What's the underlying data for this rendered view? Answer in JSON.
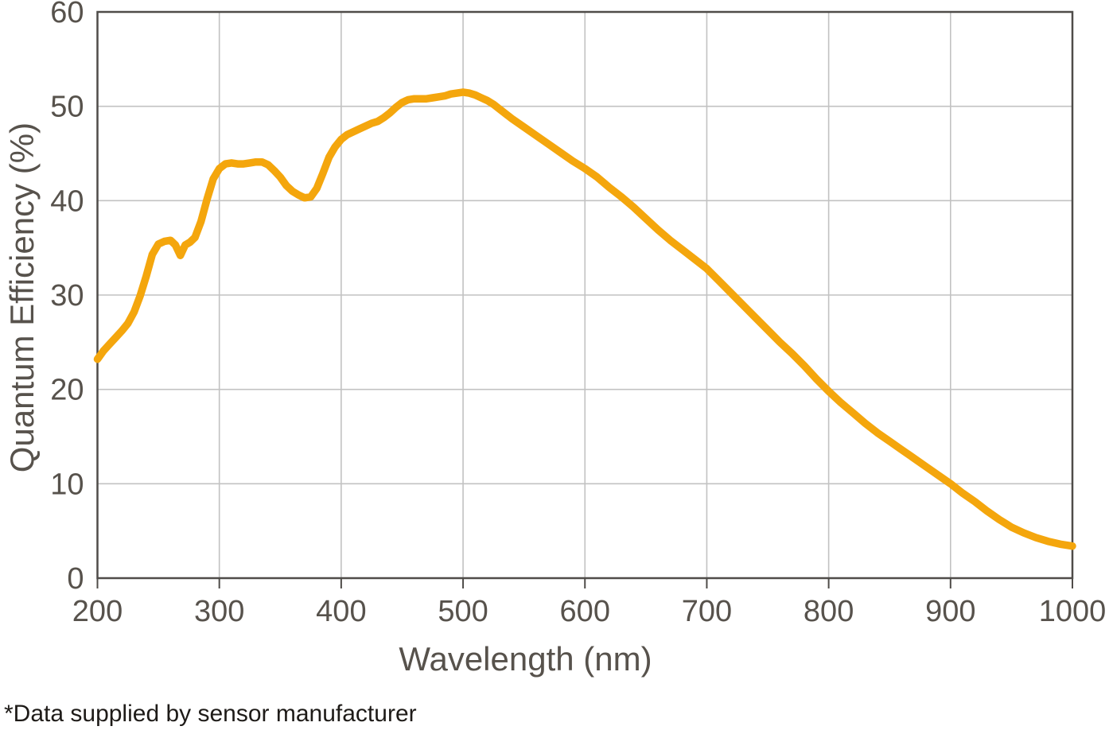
{
  "chart_data": {
    "type": "line",
    "title": "",
    "xlabel": "Wavelength (nm)",
    "ylabel": "Quantum Efficiency (%)",
    "xlim": [
      200,
      1000
    ],
    "ylim": [
      0,
      60
    ],
    "x_ticks": [
      200,
      300,
      400,
      500,
      600,
      700,
      800,
      900,
      1000
    ],
    "y_ticks": [
      0,
      10,
      20,
      30,
      40,
      50,
      60
    ],
    "grid": true,
    "legend": "none",
    "series": [
      {
        "name": "quantum-efficiency-curve",
        "color": "#F4A60D",
        "x": [
          200,
          205,
          210,
          215,
          220,
          225,
          230,
          235,
          240,
          245,
          250,
          255,
          260,
          264,
          268,
          272,
          276,
          280,
          285,
          290,
          295,
          300,
          305,
          310,
          315,
          320,
          325,
          330,
          335,
          340,
          345,
          350,
          355,
          360,
          365,
          370,
          375,
          380,
          385,
          390,
          395,
          400,
          405,
          410,
          415,
          420,
          425,
          430,
          435,
          440,
          445,
          450,
          455,
          460,
          465,
          470,
          475,
          480,
          485,
          490,
          495,
          500,
          505,
          510,
          515,
          520,
          525,
          530,
          540,
          550,
          560,
          570,
          580,
          590,
          600,
          610,
          620,
          630,
          640,
          650,
          660,
          670,
          680,
          690,
          700,
          710,
          720,
          730,
          740,
          750,
          760,
          770,
          780,
          790,
          800,
          810,
          820,
          830,
          840,
          850,
          860,
          870,
          880,
          890,
          900,
          910,
          920,
          930,
          940,
          950,
          960,
          970,
          980,
          990,
          1000
        ],
        "y": [
          23.2,
          24.1,
          24.8,
          25.5,
          26.2,
          27.0,
          28.2,
          29.9,
          32.0,
          34.3,
          35.4,
          35.7,
          35.8,
          35.3,
          34.2,
          35.3,
          35.6,
          36.1,
          37.8,
          40.2,
          42.3,
          43.4,
          43.9,
          44.0,
          43.9,
          43.9,
          44.0,
          44.1,
          44.1,
          43.8,
          43.2,
          42.5,
          41.6,
          41.0,
          40.6,
          40.3,
          40.4,
          41.3,
          42.9,
          44.6,
          45.7,
          46.5,
          47.0,
          47.3,
          47.6,
          47.9,
          48.2,
          48.4,
          48.8,
          49.3,
          49.9,
          50.4,
          50.7,
          50.8,
          50.8,
          50.8,
          50.9,
          51.0,
          51.1,
          51.3,
          51.4,
          51.5,
          51.4,
          51.2,
          50.9,
          50.6,
          50.2,
          49.7,
          48.7,
          47.8,
          46.9,
          46.0,
          45.1,
          44.2,
          43.4,
          42.5,
          41.4,
          40.4,
          39.3,
          38.1,
          36.9,
          35.8,
          34.8,
          33.8,
          32.8,
          31.5,
          30.2,
          28.9,
          27.6,
          26.3,
          25.0,
          23.8,
          22.5,
          21.1,
          19.8,
          18.6,
          17.5,
          16.4,
          15.4,
          14.5,
          13.6,
          12.7,
          11.8,
          10.9,
          10.0,
          9.0,
          8.1,
          7.1,
          6.2,
          5.4,
          4.8,
          4.3,
          3.9,
          3.6,
          3.4
        ]
      }
    ]
  },
  "footnote": "*Data supplied by sensor manufacturer",
  "colors": {
    "line": "#F4A60D",
    "grid": "#C2C2C2",
    "axis": "#4F4C49",
    "tick_text": "#57524C",
    "footnote_text": "#1E1B18",
    "background": "#FFFFFF"
  }
}
